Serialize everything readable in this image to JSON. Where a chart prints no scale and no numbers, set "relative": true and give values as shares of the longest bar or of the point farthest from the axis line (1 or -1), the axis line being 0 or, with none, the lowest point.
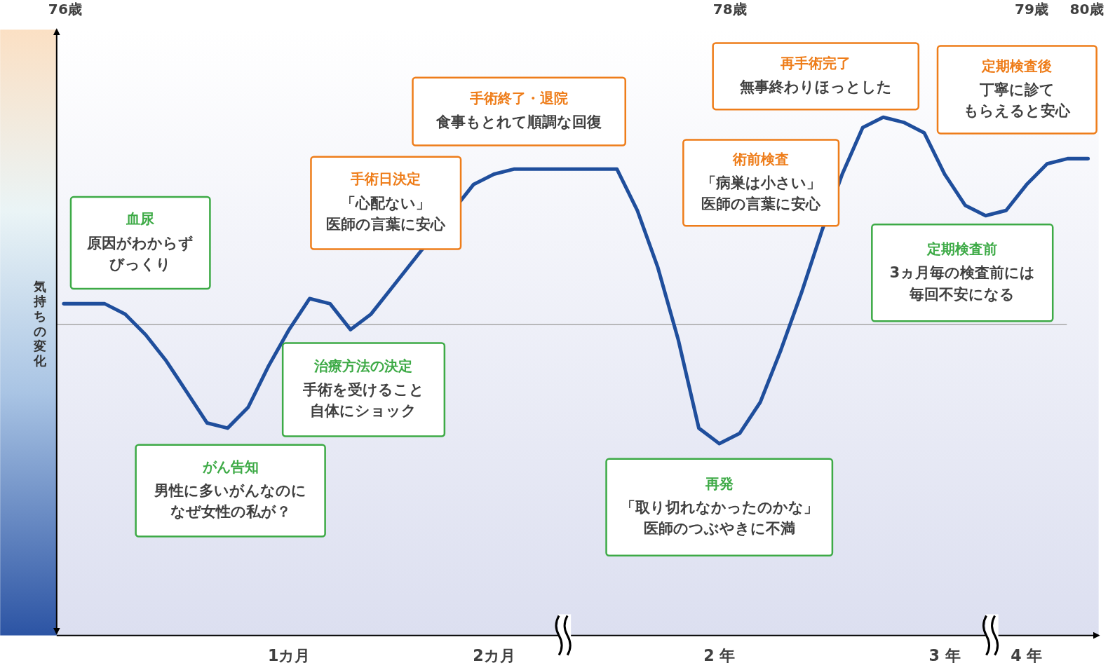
{
  "chart_data": {
    "type": "line",
    "relative": true,
    "ylabel": "気持ちの変化",
    "categories": [
      null,
      null,
      null,
      null,
      null,
      null,
      null,
      null,
      null,
      null,
      null,
      "1カ月",
      null,
      null,
      null,
      null,
      null,
      null,
      null,
      null,
      null,
      "2カ月",
      null,
      null,
      null,
      null,
      null,
      null,
      null,
      null,
      null,
      null,
      "2 年",
      null,
      null,
      null,
      null,
      null,
      null,
      null,
      null,
      null,
      null,
      "3 年",
      null,
      null,
      null,
      "4 年",
      null,
      null,
      null
    ],
    "series": [
      {
        "color": "#1f4e9c",
        "values": [
          0.64,
          0.64,
          0.64,
          0.62,
          0.58,
          0.53,
          0.47,
          0.41,
          0.4,
          0.44,
          0.52,
          0.59,
          0.65,
          0.64,
          0.59,
          0.62,
          0.67,
          0.72,
          null,
          null,
          0.87,
          0.89,
          0.9,
          0.9,
          0.9,
          0.9,
          0.9,
          0.9,
          0.82,
          0.71,
          0.57,
          0.4,
          0.37,
          0.39,
          0.45,
          0.55,
          0.66,
          0.78,
          0.89,
          0.98,
          1,
          0.99,
          0.97,
          0.89,
          0.83,
          0.81,
          0.82,
          0.87,
          0.91,
          0.92,
          0.92
        ]
      }
    ],
    "ref_lines": [
      {
        "axis": "y",
        "value": 0.6,
        "color": "#a6a6a6"
      }
    ],
    "annotations": [
      "76歳",
      "78歳",
      "79歳",
      "80歳",
      "血尿",
      "原因がわからずびっくり",
      "がん告知",
      "男性に多いがんなのになぜ女性の私が？",
      "治療方法の決定",
      "手術を受けること自体にショック",
      "手術日決定",
      "「心配ない」医師の言葉に安心",
      "手術終了・退院",
      "食事もとれて順調な回復",
      "術前検査",
      "「病巣は小さい」医師の言葉に安心",
      "再発",
      "「取り切れなかったのかな」医師のつぶやきに不満",
      "再手術完了",
      "無事終わりほっとした",
      "定期検査後",
      "丁寧に診てもらえると安心",
      "定期検査前",
      "3ヵ月毎の検査前には毎回不安になる"
    ]
  }
}
